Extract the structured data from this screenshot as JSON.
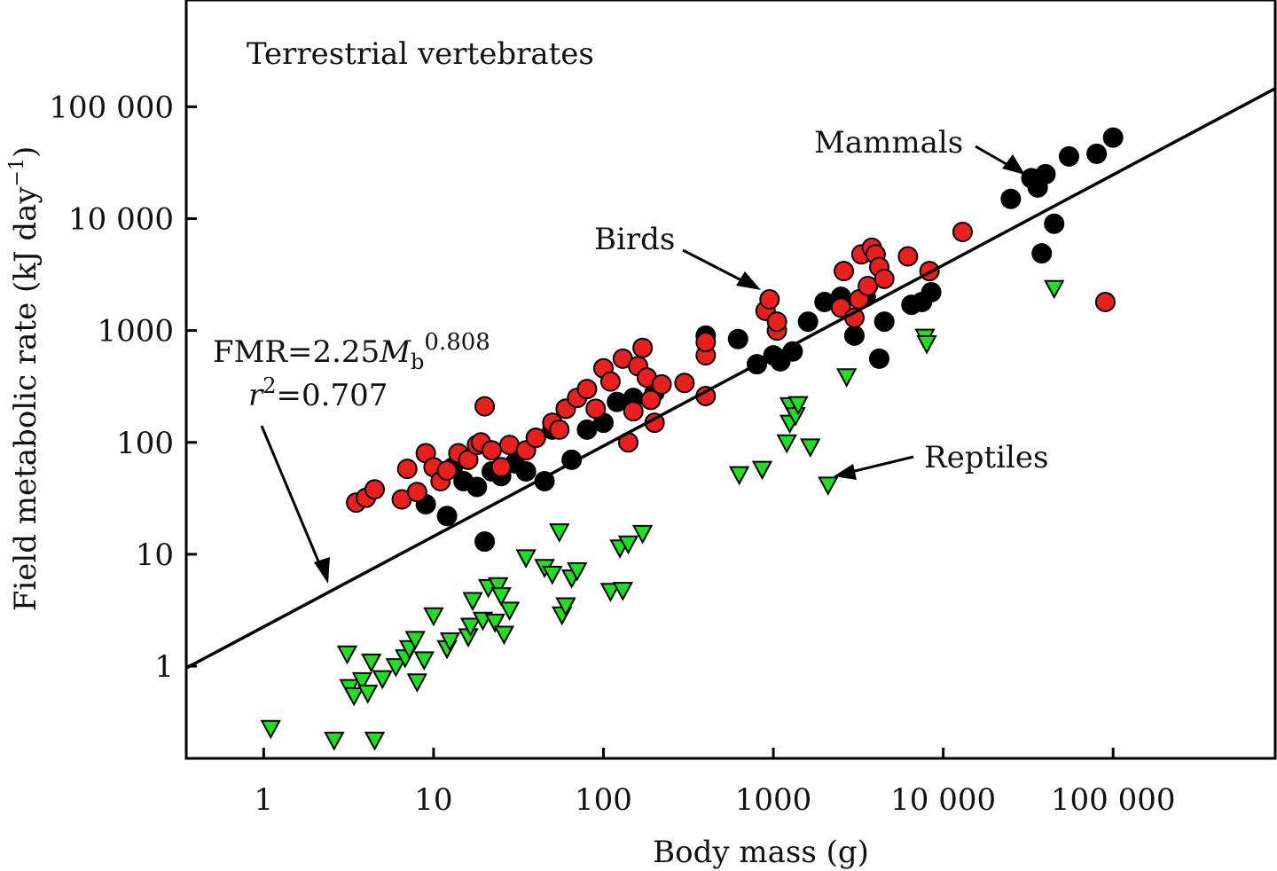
{
  "chart_data": {
    "type": "scatter",
    "title": "Terrestrial vertebrates",
    "xlabel": "Body mass (g)",
    "ylabel": "Field metabolic rate (kJ day",
    "ylabel_sup": "−1",
    "ylabel_tail": ")",
    "xscale": "log",
    "yscale": "log",
    "xlim": [
      0.35,
      900000
    ],
    "ylim": [
      0.15,
      900000
    ],
    "x_ticks": [
      1,
      10,
      100,
      1000,
      10000,
      100000
    ],
    "x_tick_labels": [
      "1",
      "10",
      "100",
      "1000",
      "10 000",
      "100 000"
    ],
    "y_ticks": [
      1,
      10,
      100,
      1000,
      10000,
      100000
    ],
    "y_tick_labels": [
      "1",
      "10",
      "100",
      "1000",
      "10 000",
      "100 000"
    ],
    "grid": false,
    "fit": {
      "a": 2.25,
      "b": 0.808,
      "label_main": "FMR=2.25",
      "label_M": "M",
      "label_sub": "b",
      "label_exp": "0.808",
      "r2_r": "r",
      "r2_sup": "2",
      "r2_rest": "=0.707"
    },
    "annotations": {
      "mammals": "Mammals",
      "birds": "Birds",
      "reptiles": "Reptiles"
    },
    "colors": {
      "birds": "#e8201e",
      "mammals": "#000000",
      "reptiles": "#22dd22",
      "line": "#000000"
    },
    "series": [
      {
        "name": "Mammals",
        "marker": "circle",
        "points": [
          [
            9,
            28
          ],
          [
            12,
            22
          ],
          [
            13,
            60
          ],
          [
            15,
            45
          ],
          [
            18,
            40
          ],
          [
            20,
            13
          ],
          [
            22,
            55
          ],
          [
            25,
            50
          ],
          [
            30,
            65
          ],
          [
            35,
            55
          ],
          [
            40,
            110
          ],
          [
            45,
            45
          ],
          [
            50,
            130
          ],
          [
            60,
            200
          ],
          [
            65,
            70
          ],
          [
            80,
            130
          ],
          [
            100,
            150
          ],
          [
            120,
            230
          ],
          [
            150,
            250
          ],
          [
            200,
            280
          ],
          [
            400,
            900
          ],
          [
            620,
            840
          ],
          [
            800,
            500
          ],
          [
            1000,
            600
          ],
          [
            1100,
            530
          ],
          [
            1300,
            650
          ],
          [
            1600,
            1200
          ],
          [
            2000,
            1800
          ],
          [
            2500,
            2000
          ],
          [
            3000,
            900
          ],
          [
            3500,
            2000
          ],
          [
            4200,
            560
          ],
          [
            4500,
            1200
          ],
          [
            6500,
            1700
          ],
          [
            7500,
            1800
          ],
          [
            8500,
            2200
          ],
          [
            25000,
            15000
          ],
          [
            33000,
            23000
          ],
          [
            36000,
            19000
          ],
          [
            40000,
            25000
          ],
          [
            38000,
            4900
          ],
          [
            45000,
            9000
          ],
          [
            55000,
            36000
          ],
          [
            80000,
            38000
          ],
          [
            100000,
            53000
          ]
        ]
      },
      {
        "name": "Birds",
        "marker": "circle",
        "points": [
          [
            3.5,
            29
          ],
          [
            4,
            32
          ],
          [
            4.5,
            38
          ],
          [
            6.5,
            31
          ],
          [
            7,
            58
          ],
          [
            8,
            36
          ],
          [
            9,
            80
          ],
          [
            10,
            60
          ],
          [
            11,
            45
          ],
          [
            12,
            56
          ],
          [
            14,
            80
          ],
          [
            16,
            70
          ],
          [
            18,
            95
          ],
          [
            19,
            100
          ],
          [
            20,
            210
          ],
          [
            22,
            85
          ],
          [
            25,
            60
          ],
          [
            28,
            95
          ],
          [
            35,
            85
          ],
          [
            40,
            110
          ],
          [
            50,
            150
          ],
          [
            55,
            130
          ],
          [
            60,
            200
          ],
          [
            70,
            250
          ],
          [
            80,
            300
          ],
          [
            90,
            200
          ],
          [
            100,
            460
          ],
          [
            110,
            350
          ],
          [
            130,
            560
          ],
          [
            140,
            100
          ],
          [
            150,
            190
          ],
          [
            160,
            480
          ],
          [
            170,
            700
          ],
          [
            180,
            380
          ],
          [
            190,
            240
          ],
          [
            200,
            150
          ],
          [
            220,
            330
          ],
          [
            300,
            340
          ],
          [
            400,
            260
          ],
          [
            400,
            600
          ],
          [
            400,
            790
          ],
          [
            900,
            1500
          ],
          [
            950,
            1900
          ],
          [
            1050,
            1000
          ],
          [
            1050,
            1200
          ],
          [
            2500,
            1600
          ],
          [
            2600,
            3400
          ],
          [
            3000,
            1300
          ],
          [
            3200,
            1900
          ],
          [
            3300,
            4800
          ],
          [
            3600,
            2500
          ],
          [
            3800,
            5500
          ],
          [
            4000,
            4800
          ],
          [
            4200,
            3700
          ],
          [
            4500,
            2900
          ],
          [
            6200,
            4600
          ],
          [
            8300,
            3400
          ],
          [
            13000,
            7600
          ],
          [
            90000,
            1800
          ]
        ]
      },
      {
        "name": "Reptiles",
        "marker": "triangle-down",
        "points": [
          [
            1.1,
            0.28
          ],
          [
            2.6,
            0.22
          ],
          [
            3.1,
            1.3
          ],
          [
            3.2,
            0.65
          ],
          [
            3.4,
            0.55
          ],
          [
            3.8,
            0.75
          ],
          [
            4.1,
            0.58
          ],
          [
            4.3,
            1.1
          ],
          [
            4.5,
            0.22
          ],
          [
            5,
            0.78
          ],
          [
            6,
            1.0
          ],
          [
            6.8,
            1.2
          ],
          [
            7.2,
            1.45
          ],
          [
            7.8,
            1.75
          ],
          [
            8,
            0.73
          ],
          [
            8.8,
            1.15
          ],
          [
            10,
            2.85
          ],
          [
            12,
            1.45
          ],
          [
            12.5,
            1.7
          ],
          [
            16,
            1.85
          ],
          [
            16.5,
            2.3
          ],
          [
            17,
            3.9
          ],
          [
            19.5,
            2.6
          ],
          [
            21,
            5.1
          ],
          [
            23,
            2.5
          ],
          [
            24,
            5.3
          ],
          [
            25,
            4.3
          ],
          [
            26,
            1.95
          ],
          [
            28,
            3.2
          ],
          [
            35,
            9.4
          ],
          [
            45,
            7.7
          ],
          [
            50,
            6.7
          ],
          [
            55,
            16
          ],
          [
            57,
            2.9
          ],
          [
            60,
            3.5
          ],
          [
            65,
            6.2
          ],
          [
            70,
            7.2
          ],
          [
            110,
            4.7
          ],
          [
            125,
            11.5
          ],
          [
            130,
            4.8
          ],
          [
            140,
            12.5
          ],
          [
            170,
            15.5
          ],
          [
            630,
            52
          ],
          [
            860,
            58
          ],
          [
            1200,
            100
          ],
          [
            1250,
            215
          ],
          [
            1250,
            150
          ],
          [
            1350,
            175
          ],
          [
            1400,
            220
          ],
          [
            1650,
            92
          ],
          [
            2100,
            42
          ],
          [
            2700,
            390
          ],
          [
            7800,
            880
          ],
          [
            8000,
            770
          ],
          [
            45000,
            2400
          ]
        ]
      }
    ]
  }
}
